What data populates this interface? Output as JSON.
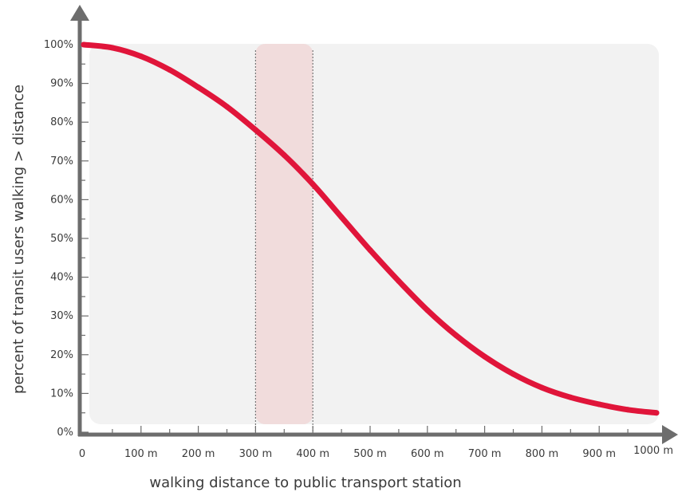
{
  "chart_data": {
    "type": "line",
    "xlabel": "walking distance to public transport station",
    "ylabel": "percent of transit users walking > distance",
    "xlim": [
      0,
      1000
    ],
    "ylim": [
      0,
      100
    ],
    "x_ticks": [
      0,
      100,
      200,
      300,
      400,
      500,
      600,
      700,
      800,
      900,
      1000
    ],
    "x_tick_labels": [
      "0",
      "100 m",
      "200 m",
      "300 m",
      "400 m",
      "500 m",
      "600 m",
      "700 m",
      "800 m",
      "900 m",
      "1000 m"
    ],
    "y_ticks": [
      0,
      10,
      20,
      30,
      40,
      50,
      60,
      70,
      80,
      90,
      100
    ],
    "y_tick_labels": [
      "0%",
      "10%",
      "20%",
      "30%",
      "40%",
      "50%",
      "60%",
      "70%",
      "80%",
      "90%",
      "100%"
    ],
    "series": [
      {
        "x": [
          0,
          50,
          100,
          150,
          200,
          250,
          300,
          350,
          400,
          450,
          500,
          550,
          600,
          650,
          700,
          750,
          800,
          850,
          900,
          950,
          1000
        ],
        "y": [
          100,
          99.2,
          97,
          93.5,
          89,
          84,
          78,
          71.5,
          64,
          55.5,
          47,
          39,
          31.5,
          25,
          19.5,
          15,
          11.5,
          9,
          7.2,
          5.8,
          5
        ]
      }
    ],
    "highlight_band": [
      300,
      400
    ],
    "colors": {
      "line": "#e0153a",
      "band": "#f1dcdc",
      "plot_background": "#f2f2f2",
      "axis": "#6d6d6d"
    }
  }
}
